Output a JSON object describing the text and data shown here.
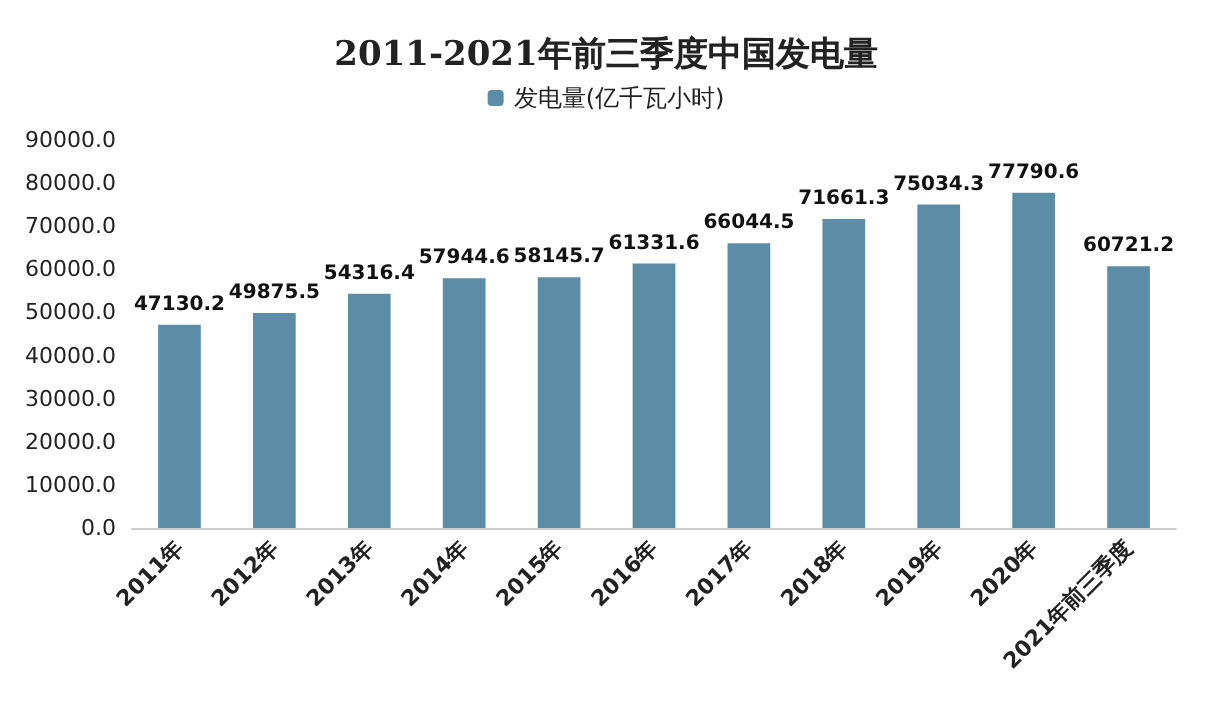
{
  "chart_data": {
    "type": "bar",
    "title": "2011-2021年前三季度中国发电量",
    "categories": [
      "2011年",
      "2012年",
      "2013年",
      "2014年",
      "2015年",
      "2016年",
      "2017年",
      "2018年",
      "2019年",
      "2020年",
      "2021年前三季度"
    ],
    "series": [
      {
        "name": "发电量(亿千瓦小时)",
        "color": "#5b8ea6",
        "values": [
          47130.2,
          49875.5,
          54316.4,
          57944.6,
          58145.7,
          61331.6,
          66044.5,
          71661.3,
          75034.3,
          77790.6,
          60721.2
        ]
      }
    ],
    "ylim": [
      0,
      90000
    ],
    "yticks": [
      {
        "value": 0,
        "label": "0.0"
      },
      {
        "value": 10000,
        "label": "10000.0"
      },
      {
        "value": 20000,
        "label": "20000.0"
      },
      {
        "value": 30000,
        "label": "30000.0"
      },
      {
        "value": 40000,
        "label": "40000.0"
      },
      {
        "value": 50000,
        "label": "50000.0"
      },
      {
        "value": 60000,
        "label": "60000.0"
      },
      {
        "value": 70000,
        "label": "70000.0"
      },
      {
        "value": 80000,
        "label": "80000.0"
      },
      {
        "value": 90000,
        "label": "90000.0"
      }
    ],
    "grid": false,
    "legend": "top",
    "data_labels": true
  }
}
